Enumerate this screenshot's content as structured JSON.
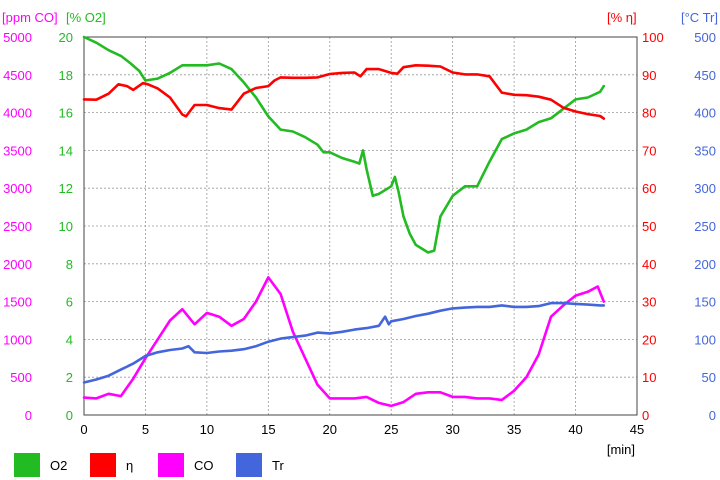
{
  "chart_data": {
    "type": "line",
    "xlabel": "[min]",
    "x_ticks": [
      0,
      5,
      10,
      15,
      20,
      25,
      30,
      35,
      40,
      45
    ],
    "xlim": [
      0,
      45
    ],
    "grid": true,
    "legend_position": "bottom",
    "axes": [
      {
        "id": "co",
        "label": "[ppm CO]",
        "side": "left",
        "color": "#ff00ff",
        "range": [
          0,
          5000
        ],
        "ticks": [
          "0",
          "500",
          "1000",
          "1500",
          "2000",
          "2500",
          "3000",
          "3500",
          "4000",
          "4500",
          "5000"
        ]
      },
      {
        "id": "o2",
        "label": "[% O2]",
        "side": "left",
        "color": "#22bb22",
        "range": [
          0,
          20
        ],
        "ticks": [
          "0",
          "2",
          "4",
          "6",
          "8",
          "10",
          "12",
          "14",
          "16",
          "18",
          "20"
        ]
      },
      {
        "id": "eta",
        "label": "[% η]",
        "side": "right",
        "color": "#ff0000",
        "range": [
          0,
          100
        ],
        "ticks": [
          "0",
          "10",
          "20",
          "30",
          "40",
          "50",
          "60",
          "70",
          "80",
          "90",
          "100"
        ]
      },
      {
        "id": "tr",
        "label": "[°C Tr]",
        "side": "right",
        "color": "#4466dd",
        "range": [
          0,
          500
        ],
        "ticks": [
          "0",
          "50",
          "100",
          "150",
          "200",
          "250",
          "300",
          "350",
          "400",
          "450",
          "500"
        ]
      }
    ],
    "series": [
      {
        "name": "O2",
        "axis": "o2",
        "color": "#22bb22",
        "x": [
          0,
          1,
          2,
          3,
          3.8,
          4.5,
          5,
          6,
          7,
          8,
          9,
          10,
          11,
          12,
          13,
          14,
          15,
          16,
          17,
          18,
          19,
          19.5,
          20,
          21,
          22,
          22.4,
          22.7,
          23,
          23.5,
          24,
          25,
          25.3,
          25.6,
          26,
          26.5,
          27,
          28,
          28.5,
          29,
          30,
          31,
          32,
          33,
          34,
          35,
          36,
          37,
          38,
          39,
          40,
          41,
          42,
          42.3
        ],
        "y": [
          20,
          19.7,
          19.3,
          19.0,
          18.6,
          18.2,
          17.7,
          17.8,
          18.1,
          18.5,
          18.5,
          18.5,
          18.6,
          18.3,
          17.6,
          16.8,
          15.8,
          15.1,
          15.0,
          14.7,
          14.3,
          13.9,
          13.9,
          13.6,
          13.4,
          13.3,
          14.0,
          13.0,
          11.6,
          11.7,
          12.1,
          12.6,
          11.8,
          10.5,
          9.6,
          9.0,
          8.6,
          8.7,
          10.5,
          11.6,
          12.1,
          12.1,
          13.4,
          14.6,
          14.9,
          15.1,
          15.5,
          15.7,
          16.2,
          16.7,
          16.8,
          17.1,
          17.4
        ]
      },
      {
        "name": "η",
        "axis": "eta",
        "color": "#ff0000",
        "x": [
          0,
          1,
          2,
          2.8,
          3.5,
          4,
          4.8,
          5.2,
          6,
          7,
          8,
          8.3,
          9,
          10,
          11,
          12,
          13,
          14,
          15,
          15.5,
          16,
          17,
          18,
          19,
          20,
          21,
          22,
          22.5,
          23,
          24,
          25,
          25.5,
          26,
          27,
          28,
          29,
          30,
          31,
          32,
          33,
          34,
          35,
          36,
          37,
          38,
          39,
          40,
          41,
          42,
          42.3
        ],
        "y": [
          83.5,
          83.4,
          85,
          87.5,
          87,
          86,
          87.8,
          87.5,
          86.4,
          84,
          79.5,
          79,
          82,
          82,
          81.2,
          80.8,
          85,
          86.5,
          87,
          88.5,
          89.3,
          89.2,
          89.2,
          89.3,
          90.2,
          90.5,
          90.6,
          89.6,
          91.5,
          91.5,
          90.5,
          90.3,
          92,
          92.5,
          92.4,
          92.2,
          90.6,
          90.1,
          90.1,
          89.6,
          85.3,
          84.7,
          84.6,
          84.2,
          83.4,
          81.3,
          80.3,
          79.6,
          79.1,
          78.4
        ]
      },
      {
        "name": "CO",
        "axis": "co",
        "color": "#ff00ff",
        "x": [
          0,
          1,
          2,
          3,
          4,
          5,
          6,
          7,
          8,
          9,
          10,
          11,
          12,
          13,
          14,
          15,
          16,
          17,
          18,
          19,
          20,
          21,
          22,
          23,
          24,
          25,
          26,
          27,
          28,
          29,
          30,
          31,
          32,
          33,
          34,
          35,
          36,
          37,
          38,
          39,
          40,
          41,
          41.8,
          42.3
        ],
        "y": [
          230,
          220,
          280,
          250,
          480,
          750,
          1000,
          1250,
          1400,
          1200,
          1350,
          1300,
          1180,
          1270,
          1500,
          1820,
          1600,
          1100,
          750,
          400,
          220,
          220,
          220,
          240,
          160,
          120,
          170,
          280,
          300,
          300,
          240,
          240,
          220,
          220,
          200,
          320,
          500,
          800,
          1300,
          1450,
          1580,
          1630,
          1700,
          1500
        ]
      },
      {
        "name": "Tr",
        "axis": "tr",
        "color": "#4466dd",
        "x": [
          0,
          1,
          2,
          3,
          4,
          5,
          6,
          7,
          8,
          8.5,
          9,
          10,
          11,
          12,
          13,
          14,
          15,
          16,
          17,
          18,
          19,
          20,
          21,
          22,
          23,
          24,
          24.5,
          24.8,
          25,
          26,
          27,
          28,
          29,
          30,
          31,
          32,
          33,
          34,
          35,
          36,
          37,
          38,
          39,
          40,
          41,
          42,
          42.3
        ],
        "y": [
          43,
          47,
          52,
          60,
          68,
          78,
          83,
          86,
          88,
          91,
          83,
          82,
          84,
          85,
          87,
          91,
          97,
          101,
          103,
          105,
          109,
          108,
          110,
          113,
          115,
          118,
          130,
          120,
          124,
          127,
          131,
          134,
          138,
          141,
          142,
          143,
          143,
          145,
          143,
          143,
          144,
          148,
          148,
          147,
          146,
          145,
          145
        ]
      }
    ]
  },
  "legend": [
    {
      "label": "O2",
      "color": "#22bb22"
    },
    {
      "label": "η",
      "color": "#ff0000"
    },
    {
      "label": "CO",
      "color": "#ff00ff"
    },
    {
      "label": "Tr",
      "color": "#4466dd"
    }
  ]
}
